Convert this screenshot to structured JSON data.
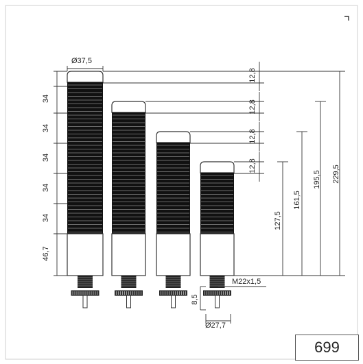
{
  "dimensions": {
    "diameter_top": "Ø37,5",
    "segment_height": "34",
    "base_height": "46,7",
    "cap_height": "12,8",
    "thread": "M22x1,5",
    "thread_length": "8,5",
    "diameter_base": "Ø27,7",
    "total_heights": [
      "229,5",
      "195,5",
      "161,5",
      "127,5"
    ]
  },
  "page_number": "699",
  "colors": {
    "line": "#333333",
    "body": "#111111",
    "cap": "#ffffff",
    "background": "#ffffff"
  }
}
